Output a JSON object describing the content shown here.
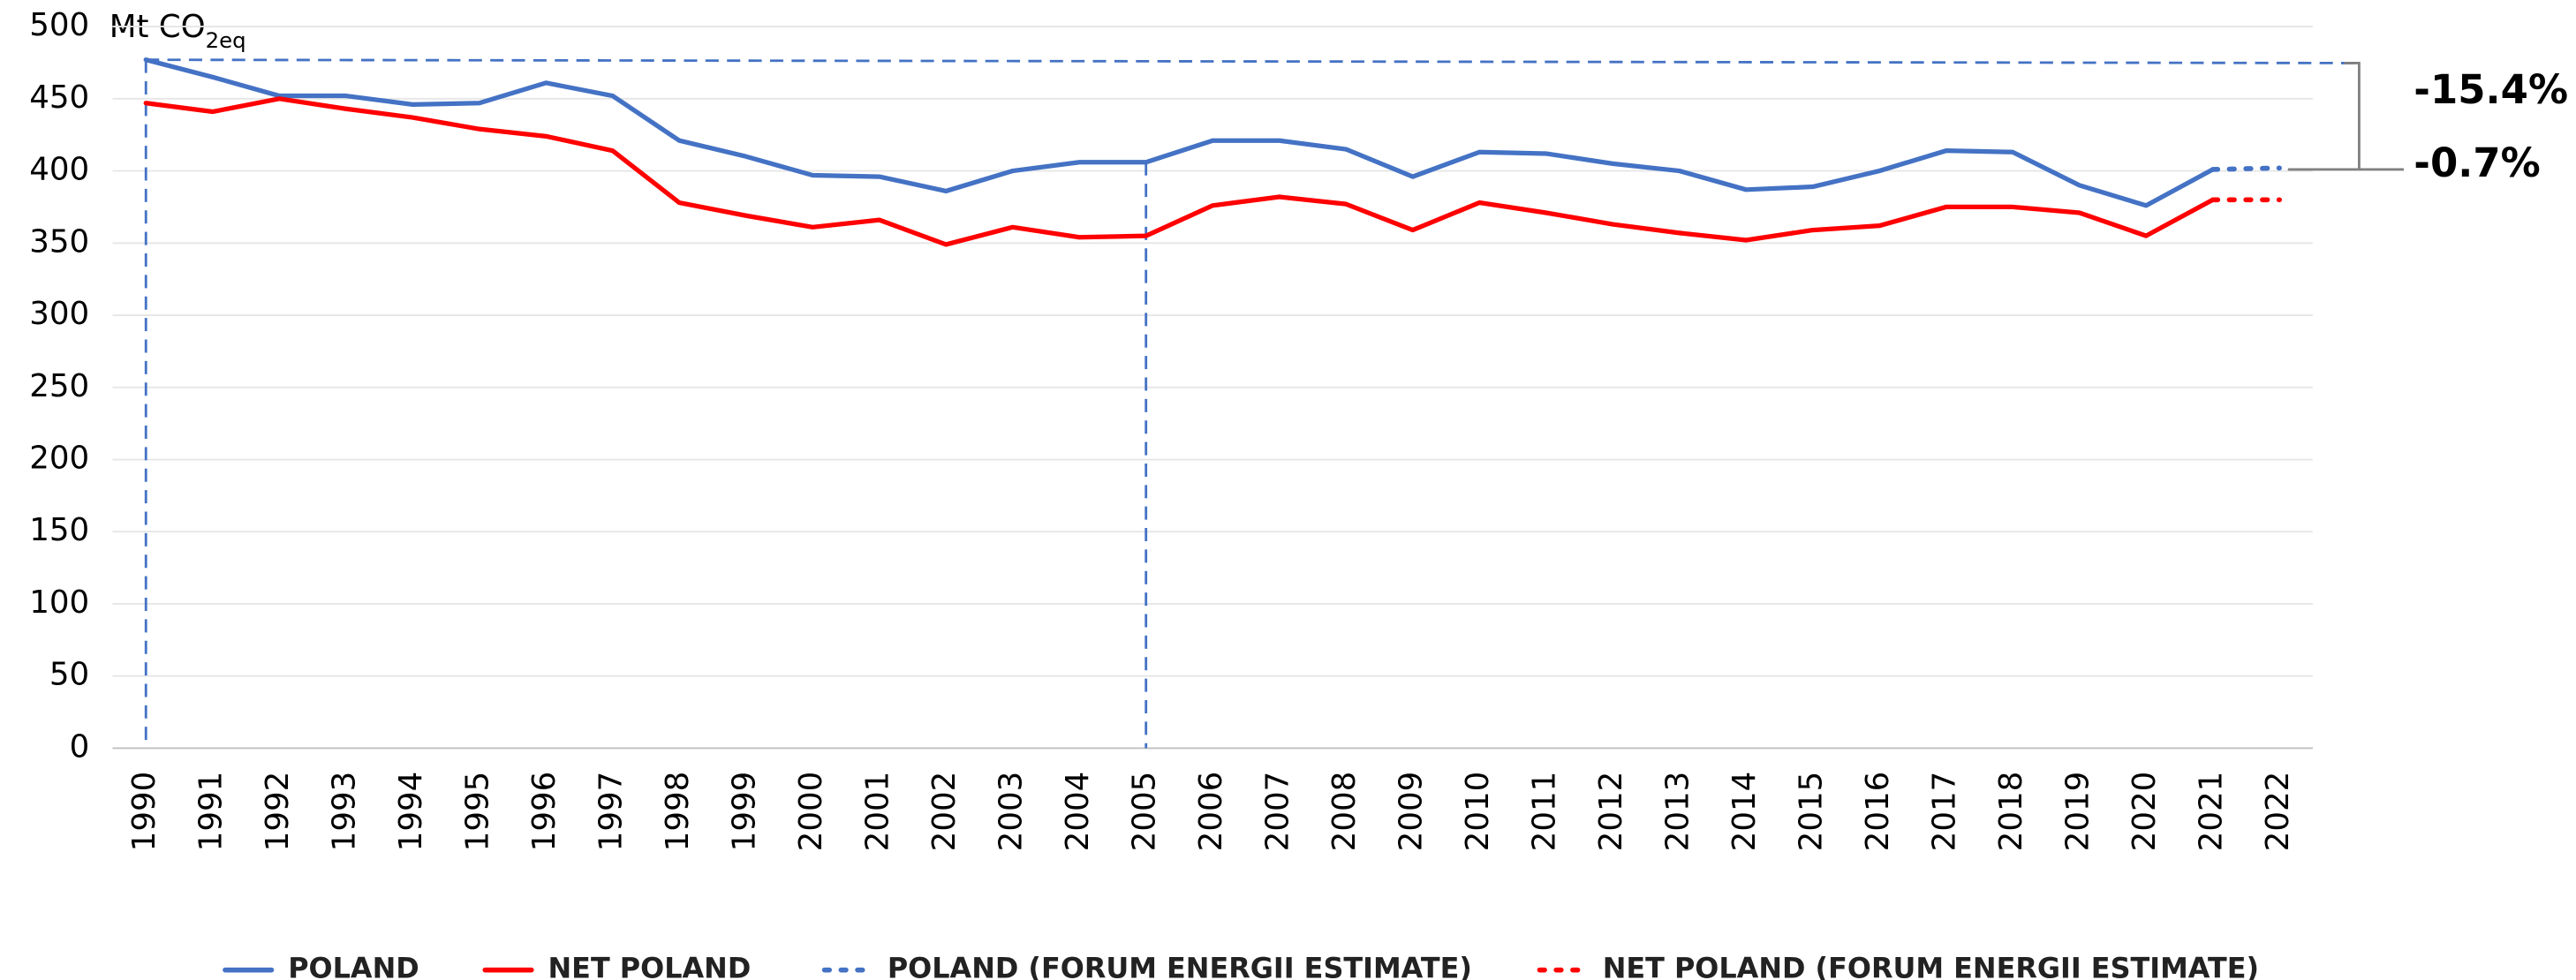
{
  "chart_data": {
    "type": "line",
    "y_unit": "Mt CO",
    "y_unit_sub": "2eq",
    "categories": [
      "1990",
      "1991",
      "1992",
      "1993",
      "1994",
      "1995",
      "1996",
      "1997",
      "1998",
      "1999",
      "2000",
      "2001",
      "2002",
      "2003",
      "2004",
      "2005",
      "2006",
      "2007",
      "2008",
      "2009",
      "2010",
      "2011",
      "2012",
      "2013",
      "2014",
      "2015",
      "2016",
      "2017",
      "2018",
      "2019",
      "2020",
      "2021",
      "2022"
    ],
    "series": [
      {
        "name": "POLAND",
        "color": "#4472c4",
        "dash": "solid",
        "values": [
          477,
          465,
          452,
          452,
          446,
          447,
          461,
          452,
          421,
          410,
          397,
          396,
          386,
          400,
          406,
          406,
          421,
          421,
          415,
          396,
          413,
          412,
          405,
          400,
          387,
          389,
          400,
          414,
          413,
          390,
          376,
          401,
          null
        ]
      },
      {
        "name": "NET POLAND",
        "color": "#ff0000",
        "dash": "solid",
        "values": [
          447,
          441,
          450,
          443,
          437,
          429,
          424,
          414,
          378,
          369,
          361,
          366,
          349,
          361,
          354,
          355,
          376,
          382,
          377,
          359,
          378,
          371,
          363,
          357,
          352,
          359,
          362,
          375,
          375,
          371,
          355,
          380,
          null
        ]
      },
      {
        "name": "POLAND (FORUM ENERGII ESTIMATE)",
        "color": "#4472c4",
        "dash": "dotted",
        "values": [
          null,
          null,
          null,
          null,
          null,
          null,
          null,
          null,
          null,
          null,
          null,
          null,
          null,
          null,
          null,
          null,
          null,
          null,
          null,
          null,
          null,
          null,
          null,
          null,
          null,
          null,
          null,
          null,
          null,
          null,
          null,
          401,
          402
        ]
      },
      {
        "name": "NET POLAND (FORUM ENERGII ESTIMATE)",
        "color": "#ff0000",
        "dash": "dotted",
        "values": [
          null,
          null,
          null,
          null,
          null,
          null,
          null,
          null,
          null,
          null,
          null,
          null,
          null,
          null,
          null,
          null,
          null,
          null,
          null,
          null,
          null,
          null,
          null,
          null,
          null,
          null,
          null,
          null,
          null,
          null,
          null,
          380,
          380
        ]
      }
    ],
    "annotations": [
      "-15.4%",
      "-0.7%"
    ],
    "ylim": [
      0,
      500
    ],
    "yticks": [
      0,
      50,
      100,
      150,
      200,
      250,
      300,
      350,
      400,
      450,
      500
    ],
    "grid": true,
    "legend": "bottom"
  }
}
